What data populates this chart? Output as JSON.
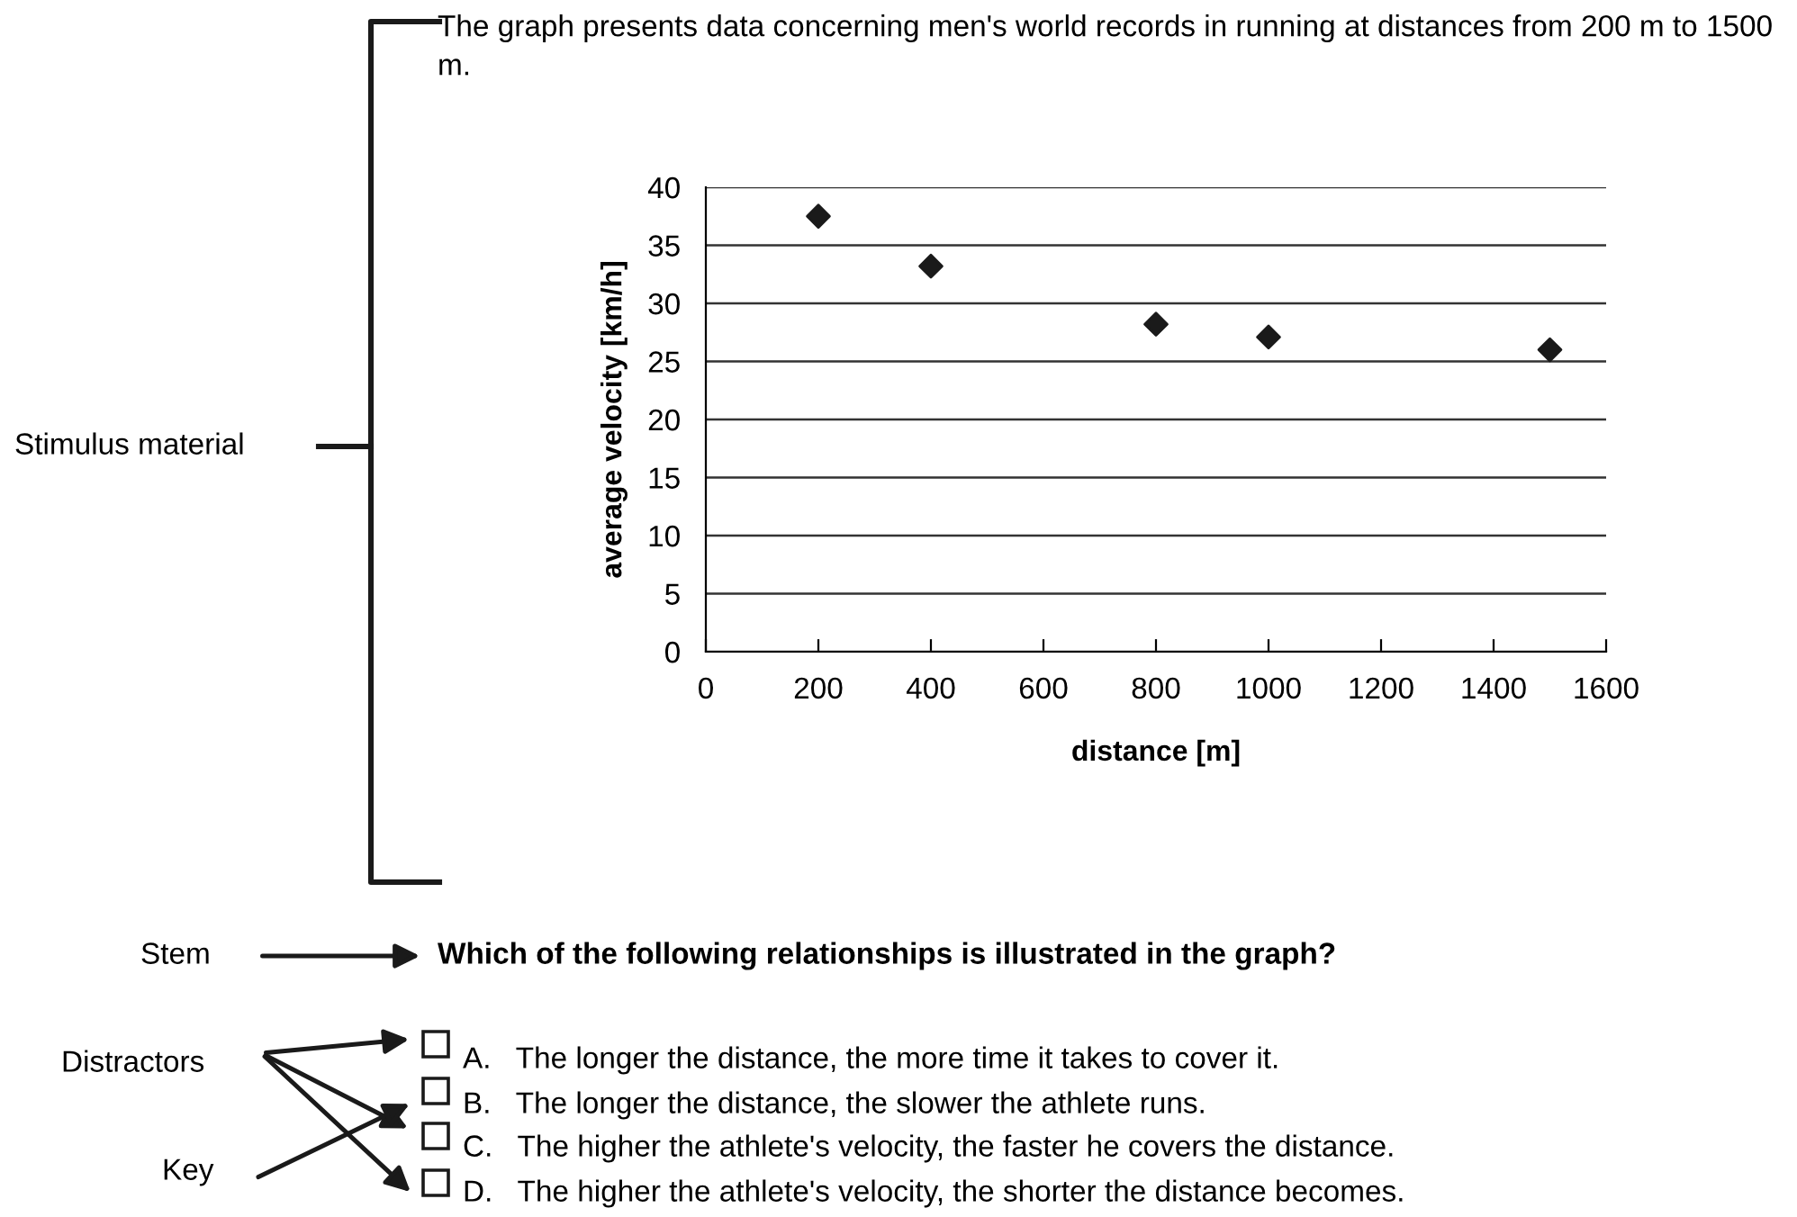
{
  "chart_data": {
    "type": "scatter",
    "title": "The graph presents data concerning men's world records in running at distances from 200 m to 1500 m.",
    "xlabel": "distance [m]",
    "ylabel": "average velocity [km/h]",
    "x": [
      200,
      400,
      800,
      1000,
      1500
    ],
    "values": [
      37.5,
      33.2,
      28.2,
      27.1,
      26.0
    ],
    "color": "#1a1a1a",
    "marker": "diamond",
    "grid": "y",
    "xlim": [
      0,
      1600
    ],
    "xticks": [
      0,
      200,
      400,
      600,
      800,
      1000,
      1200,
      1400,
      1600
    ],
    "ylim": [
      0,
      40
    ],
    "yticks": [
      0,
      5,
      10,
      15,
      20,
      25,
      30,
      35,
      40
    ],
    "annotations": [
      "Stimulus material",
      "Stem",
      "Which of the following relationships is illustrated in the graph?",
      "Distractors",
      "Key",
      "A.   The longer the distance, the more time it takes to cover it.",
      "B.   The longer the distance, the slower the athlete runs.",
      "C.   The higher the athlete's velocity, the faster he covers the distance.",
      "D.   The higher the athlete's velocity, the shorter the distance becomes."
    ]
  }
}
